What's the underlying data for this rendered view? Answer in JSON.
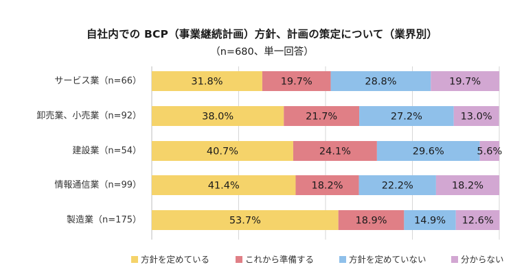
{
  "chart_data": {
    "type": "bar",
    "orientation": "horizontal",
    "stacked": "percent",
    "title": "自社内での BCP（事業継続計画）方針、計画の策定について（業界別）",
    "subtitle": "（n=680、単一回答）",
    "categories": [
      "サービス業（n=66）",
      "卸売業、小売業（n=92）",
      "建設業（n=54）",
      "情報通信業（n=99）",
      "製造業（n=175）"
    ],
    "series": [
      {
        "name": "方針を定めている",
        "color": "#f5d36a",
        "values": [
          31.8,
          38.0,
          40.7,
          41.4,
          53.7
        ],
        "labels": [
          "31.8%",
          "38.0%",
          "40.7%",
          "41.4%",
          "53.7%"
        ]
      },
      {
        "name": "これから準備する",
        "color": "#e07f86",
        "values": [
          19.7,
          21.7,
          24.1,
          18.2,
          18.9
        ],
        "labels": [
          "19.7%",
          "21.7%",
          "24.1%",
          "18.2%",
          "18.9%"
        ]
      },
      {
        "name": "方針を定めていない",
        "color": "#8fc0ea",
        "values": [
          28.8,
          27.2,
          29.6,
          22.2,
          14.9
        ],
        "labels": [
          "28.8%",
          "27.2%",
          "29.6%",
          "22.2%",
          "14.9%"
        ]
      },
      {
        "name": "分からない",
        "color": "#d2a7d2",
        "values": [
          19.7,
          13.0,
          5.6,
          18.2,
          12.6
        ],
        "labels": [
          "19.7%",
          "13.0%",
          "5.6%",
          "18.2%",
          "12.6%"
        ]
      }
    ],
    "xlim": [
      0,
      100
    ],
    "grid": true,
    "legend": "bottom"
  }
}
